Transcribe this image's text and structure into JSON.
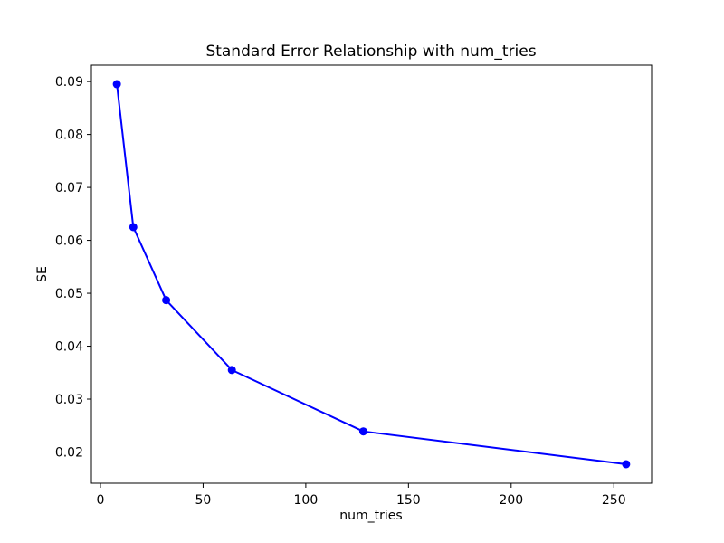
{
  "figure": {
    "background": "#ffffff"
  },
  "chart_data": {
    "type": "line",
    "title": "Standard Error Relationship with num_tries",
    "xlabel": "num_tries",
    "ylabel": "SE",
    "series": [
      {
        "name": "SE",
        "x": [
          8,
          16,
          32,
          64,
          128,
          256
        ],
        "y": [
          0.0895,
          0.0625,
          0.0487,
          0.0355,
          0.0239,
          0.0177
        ],
        "line_color": "#0000ff",
        "marker": "circle",
        "marker_color": "#0000ff"
      }
    ],
    "xlim": [
      -4.4,
      268.4
    ],
    "ylim": [
      0.0141,
      0.0931
    ],
    "xticks": [
      0,
      50,
      100,
      150,
      200,
      250
    ],
    "xtick_labels": [
      "0",
      "50",
      "100",
      "150",
      "200",
      "250"
    ],
    "yticks": [
      0.02,
      0.03,
      0.04,
      0.05,
      0.06,
      0.07,
      0.08,
      0.09
    ],
    "ytick_labels": [
      "0.02",
      "0.03",
      "0.04",
      "0.05",
      "0.06",
      "0.07",
      "0.08",
      "0.09"
    ],
    "grid": false,
    "legend_position": "none",
    "text_color": "#000000",
    "spine_color": "#000000",
    "plot_background": "#ffffff"
  }
}
